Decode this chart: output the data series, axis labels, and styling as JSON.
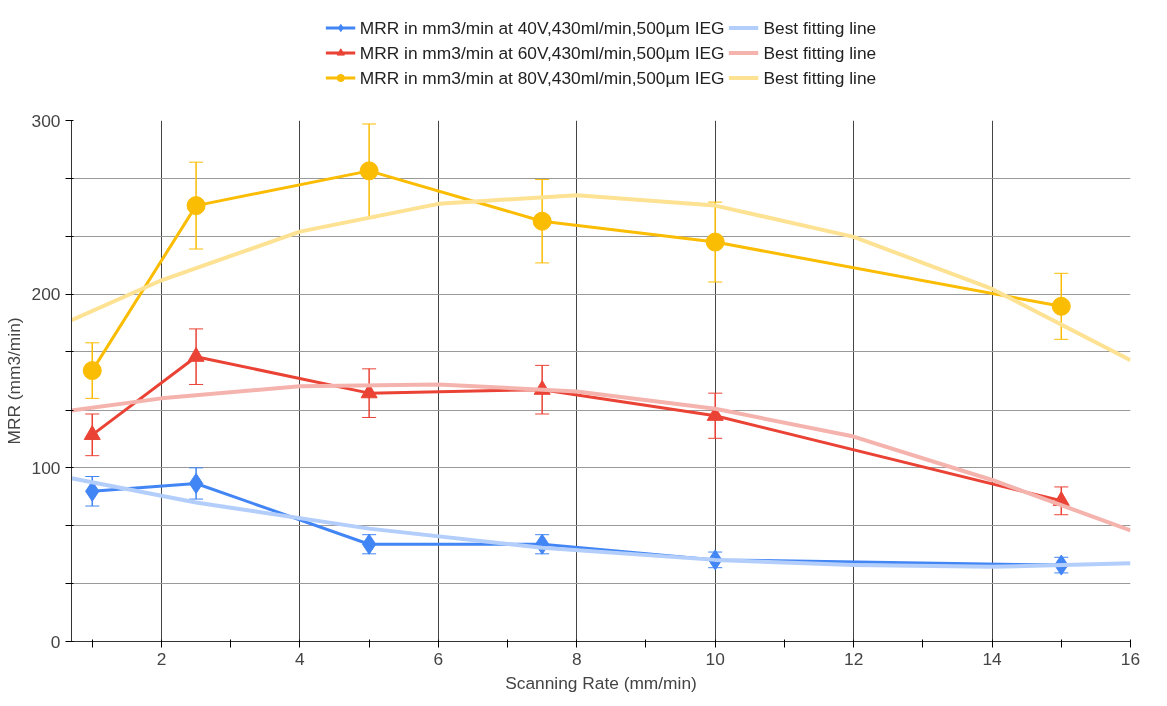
{
  "chart_data": {
    "type": "line",
    "xlabel": "Scanning Rate (mm/min)",
    "ylabel": "MRR (mm3/min)",
    "xlim": [
      0.7,
      16
    ],
    "ylim": [
      0,
      300
    ],
    "xticks": [
      {
        "value": 1,
        "label": null
      },
      2,
      {
        "value": 3,
        "label": null
      },
      4,
      {
        "value": 5,
        "label": null
      },
      6,
      {
        "value": 7,
        "label": null
      },
      8,
      {
        "value": 9,
        "label": null
      },
      10,
      {
        "value": 11,
        "label": null
      },
      12,
      {
        "value": 13,
        "label": null
      },
      14,
      {
        "value": 15,
        "label": null
      },
      16
    ],
    "yticks": [
      0,
      {
        "value": 33.3,
        "label": null
      },
      {
        "value": 66.7,
        "label": null
      },
      100,
      {
        "value": 133.3,
        "label": null
      },
      {
        "value": 166.7,
        "label": null
      },
      200,
      {
        "value": 233.3,
        "label": null
      },
      {
        "value": 266.7,
        "label": null
      },
      300
    ],
    "grid": true,
    "legend": "top",
    "x": [
      1,
      2.5,
      5,
      7.5,
      10,
      15
    ],
    "series": [
      {
        "name": "MRR in mm3/min at 40V,430ml/min,500µm IEG",
        "color": "#4285f4",
        "marker": "diamond",
        "values": [
          86.5,
          91,
          56,
          56,
          47,
          44
        ],
        "errors": [
          8.5,
          9,
          5.5,
          5.5,
          4.5,
          4.5
        ]
      },
      {
        "name": "Best fitting line",
        "color": "#b3cefb",
        "marker": "none",
        "x": [
          0.7,
          2.5,
          5,
          7.5,
          10,
          12,
          14,
          16
        ],
        "values": [
          94,
          80,
          65,
          54,
          47,
          44,
          43,
          45
        ]
      },
      {
        "name": "MRR in mm3/min at 60V,430ml/min,500µm IEG",
        "color": "#ea4335",
        "marker": "triangle",
        "values": [
          119,
          164,
          143,
          145,
          130,
          81
        ],
        "errors": [
          12,
          16,
          14,
          14,
          13,
          8
        ]
      },
      {
        "name": "Best fitting line",
        "color": "#f5b3ae",
        "marker": "none",
        "x": [
          0.7,
          2,
          4,
          6,
          8,
          10,
          12,
          14,
          16
        ],
        "values": [
          133,
          140,
          147,
          148,
          144,
          134,
          118,
          93,
          64
        ]
      },
      {
        "name": "MRR in mm3/min at 80V,430ml/min,500µm IEG",
        "color": "#fbbc04",
        "marker": "circle",
        "values": [
          156,
          251,
          271,
          242,
          230,
          193
        ],
        "errors": [
          16,
          25,
          27,
          24,
          23,
          19
        ]
      },
      {
        "name": "Best fitting line",
        "color": "#fde293",
        "marker": "none",
        "x": [
          0.7,
          2,
          4,
          6,
          8,
          10,
          12,
          14,
          16
        ],
        "values": [
          185,
          208,
          236,
          252,
          257,
          251,
          233,
          203,
          162
        ]
      }
    ]
  }
}
